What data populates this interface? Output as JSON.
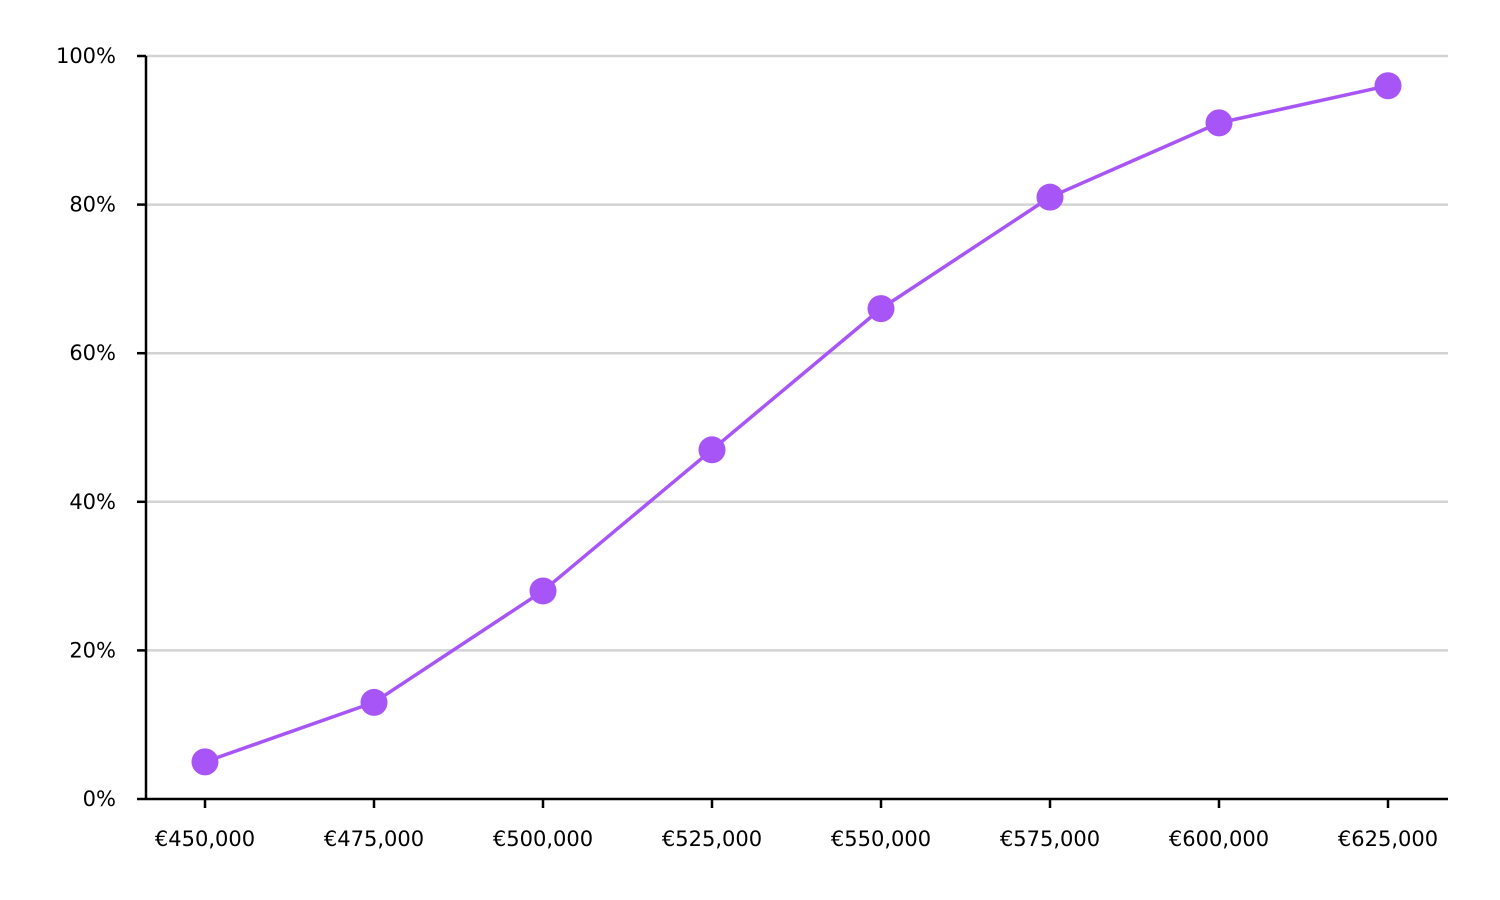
{
  "chart_data": {
    "type": "line",
    "title": "",
    "xlabel": "",
    "ylabel": "",
    "x": [
      450000,
      475000,
      500000,
      525000,
      550000,
      575000,
      600000,
      625000
    ],
    "x_tick_labels": [
      "€450,000",
      "€475,000",
      "€500,000",
      "€525,000",
      "€550,000",
      "€575,000",
      "€600,000",
      "€625,000"
    ],
    "series": [
      {
        "values": [
          5,
          13,
          28,
          47,
          66,
          81,
          91,
          96
        ],
        "color": "#a855f7",
        "markers": true
      }
    ],
    "ylim": [
      0,
      100
    ],
    "y_ticks": [
      0,
      20,
      40,
      60,
      80,
      100
    ],
    "y_tick_labels": [
      "0%",
      "20%",
      "40%",
      "60%",
      "80%",
      "100%"
    ],
    "grid": "horizontal",
    "legend": "none"
  }
}
